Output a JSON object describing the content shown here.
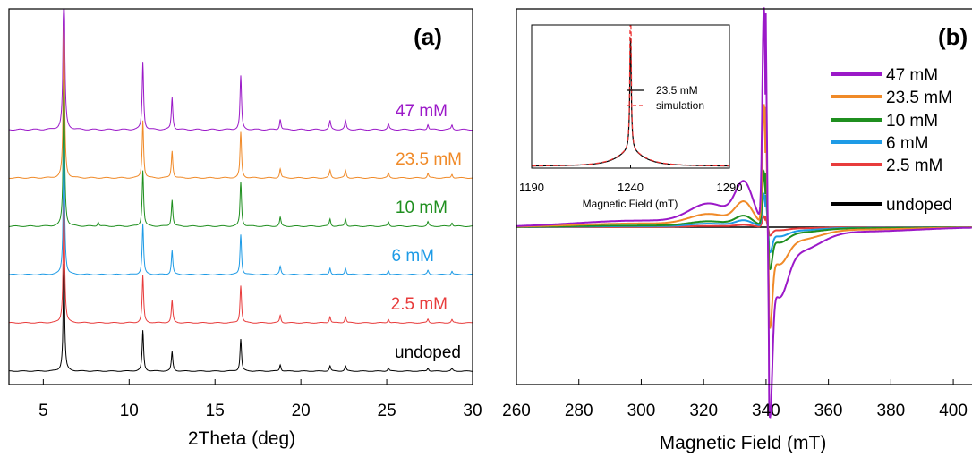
{
  "colors": {
    "47": "#9b19c8",
    "23.5": "#f08a28",
    "10": "#1f8f1f",
    "6": "#1e9be6",
    "2.5": "#e83c3c",
    "undoped": "#000000",
    "simulation": "#ee3333"
  },
  "chart_data": [
    {
      "panel_label": "(a)",
      "type": "line",
      "xlabel": "2Theta (deg)",
      "ylabel": "",
      "xlim": [
        3,
        30
      ],
      "xticks": [
        5,
        10,
        15,
        20,
        25,
        30
      ],
      "y_ticks_shown": false,
      "series": [
        {
          "name": "47 mM",
          "color_key": "47"
        },
        {
          "name": "23.5 mM",
          "color_key": "23.5"
        },
        {
          "name": "10 mM",
          "color_key": "10"
        },
        {
          "name": "6 mM",
          "color_key": "6"
        },
        {
          "name": "2.5 mM",
          "color_key": "2.5"
        },
        {
          "name": "undoped",
          "color_key": "undoped"
        }
      ],
      "peaks_deg": [
        6.2,
        10.8,
        12.5,
        16.5,
        18.8,
        21.7,
        22.6,
        25.1,
        27.4,
        28.8
      ],
      "peak_heights": [
        1.0,
        0.38,
        0.18,
        0.3,
        0.06,
        0.05,
        0.05,
        0.03,
        0.03,
        0.025
      ]
    },
    {
      "panel_label": "(b)",
      "type": "line",
      "xlabel": "Magnetic Field (mT)",
      "ylabel": "",
      "xlim": [
        260,
        406
      ],
      "xticks": [
        260,
        280,
        300,
        320,
        340,
        360,
        380,
        400
      ],
      "y_ticks_shown": false,
      "legend_position": "right",
      "series": [
        {
          "name": "47 mM",
          "color_key": "47",
          "max": 1.0,
          "min": -0.68
        },
        {
          "name": "23.5 mM",
          "color_key": "23.5",
          "max": 0.56,
          "min": -0.36
        },
        {
          "name": "10 mM",
          "color_key": "10",
          "max": 0.25,
          "min": -0.15
        },
        {
          "name": "6 mM",
          "color_key": "6",
          "max": 0.15,
          "min": -0.09
        },
        {
          "name": "2.5 mM",
          "color_key": "2.5",
          "max": 0.05,
          "min": -0.03
        },
        {
          "name": "undoped",
          "color_key": "undoped",
          "max": 0.0,
          "min": 0.0
        }
      ],
      "inset": {
        "type": "line",
        "xlabel": "Magnetic Field (mT)",
        "xlim": [
          1190,
          1290
        ],
        "xticks": [
          1190,
          1240,
          1290
        ],
        "series": [
          {
            "name": "23.5 mM",
            "color_key": "undoped",
            "style": "solid"
          },
          {
            "name": "simulation",
            "color_key": "simulation",
            "style": "dashed"
          }
        ]
      }
    }
  ]
}
